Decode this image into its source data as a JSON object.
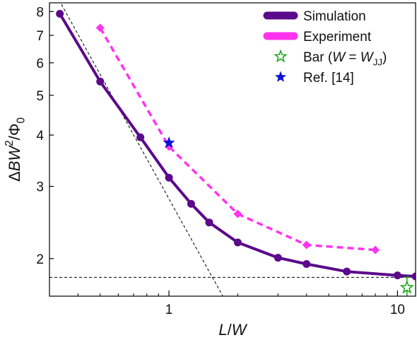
{
  "chart_data": {
    "type": "line",
    "xscale": "log",
    "yscale": "log",
    "xlim": [
      0.3,
      12
    ],
    "ylim": [
      1.62,
      8.4
    ],
    "xlabel_parts": [
      {
        "t": "L",
        "i": true,
        "s": false
      },
      {
        "t": "/",
        "i": false,
        "s": false
      },
      {
        "t": "W",
        "i": true,
        "s": false
      }
    ],
    "ylabel_parts": [
      {
        "t": "Δ",
        "i": false,
        "s": false
      },
      {
        "t": "BW",
        "i": true,
        "s": false
      },
      {
        "t": "2",
        "i": false,
        "s": true
      },
      {
        "t": "/Φ",
        "i": false,
        "s": false
      },
      {
        "t": "0",
        "i": false,
        "b": true
      }
    ],
    "xticks": [
      {
        "v": 1,
        "label": "1"
      },
      {
        "v": 10,
        "label": "10"
      }
    ],
    "xminor": [
      0.3,
      0.4,
      0.5,
      0.6,
      0.7,
      0.8,
      0.9,
      2,
      3,
      4,
      5,
      6,
      7,
      8,
      9
    ],
    "yticks": [
      {
        "v": 2,
        "label": "2"
      },
      {
        "v": 3,
        "label": "3"
      },
      {
        "v": 4,
        "label": "4"
      },
      {
        "v": 5,
        "label": "5"
      },
      {
        "v": 6,
        "label": "6"
      },
      {
        "v": 7,
        "label": "7"
      },
      {
        "v": 8,
        "label": "8"
      }
    ],
    "series": [
      {
        "name": "Simulation",
        "color": "#5b0a8c",
        "style": "solid",
        "marker": "circle",
        "x": [
          0.333,
          0.5,
          0.75,
          1.0,
          1.25,
          1.5,
          2.0,
          3.0,
          4.0,
          6.0,
          10.0,
          12.0
        ],
        "y": [
          7.9,
          5.4,
          3.95,
          3.15,
          2.72,
          2.45,
          2.19,
          2.01,
          1.94,
          1.86,
          1.82,
          1.81
        ]
      },
      {
        "name": "Experiment",
        "color": "#ff33ee",
        "style": "dashed",
        "marker": "diamond",
        "x": [
          0.5,
          1.0,
          2.0,
          4.0,
          8.0
        ],
        "y": [
          7.3,
          3.75,
          2.57,
          2.16,
          2.1
        ]
      }
    ],
    "points": [
      {
        "name": "Ref. [14]",
        "color": "#0a14d8",
        "marker": "star-filled",
        "x": 1.0,
        "y": 3.83
      },
      {
        "name": "Bar (W = W_JJ)",
        "color": "#22a81e",
        "marker": "star-open",
        "x": 11.0,
        "y": 1.7,
        "err": [
          1.56,
          1.8
        ]
      }
    ],
    "guides": [
      {
        "style": "dashed",
        "color": "#000000",
        "x": [
          0.3,
          1.72
        ],
        "y": [
          9.4,
          1.62
        ]
      },
      {
        "style": "dashed",
        "color": "#000000",
        "x": [
          0.3,
          12
        ],
        "y": [
          1.8,
          1.8
        ]
      }
    ],
    "legend": {
      "placement": "top-right",
      "items": [
        {
          "kind": "line",
          "color": "#5b0a8c",
          "parts": [
            {
              "t": "Simulation"
            }
          ]
        },
        {
          "kind": "line",
          "color": "#ff33ee",
          "parts": [
            {
              "t": "Experiment"
            }
          ]
        },
        {
          "kind": "star-open",
          "color": "#22a81e",
          "parts": [
            {
              "t": "Bar ("
            },
            {
              "t": "W",
              "i": true
            },
            {
              "t": " = "
            },
            {
              "t": "W",
              "i": true
            },
            {
              "t": "JJ",
              "b": true
            },
            {
              "t": ")"
            }
          ]
        },
        {
          "kind": "star-filled",
          "color": "#0a14d8",
          "parts": [
            {
              "t": "Ref. [14]"
            }
          ]
        }
      ]
    }
  }
}
